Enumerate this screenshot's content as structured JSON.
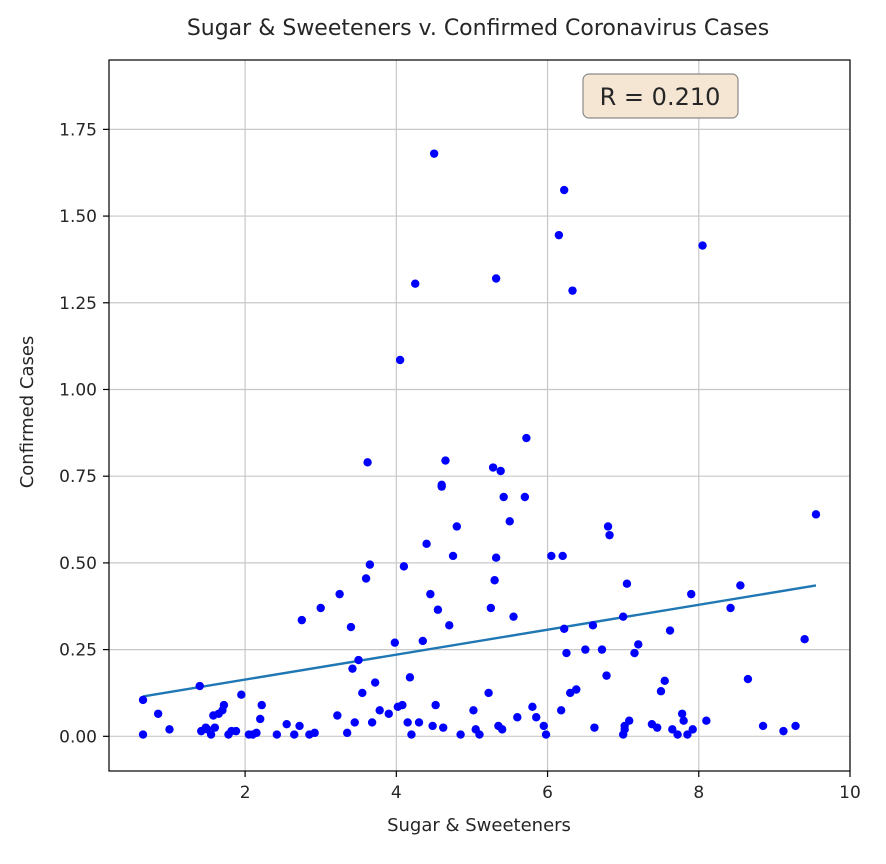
{
  "chart_data": {
    "type": "scatter",
    "title": "Sugar & Sweeteners v. Confirmed Coronavirus Cases",
    "xlabel": "Sugar & Sweeteners",
    "ylabel": "Confirmed Cases",
    "xlim": [
      0.2,
      10
    ],
    "ylim": [
      -0.1,
      1.95
    ],
    "xticks": [
      2,
      4,
      6,
      8,
      10
    ],
    "xtick_labels": [
      "2",
      "4",
      "6",
      "8",
      "10"
    ],
    "yticks": [
      0,
      0.25,
      0.5,
      0.75,
      1.0,
      1.25,
      1.5,
      1.75
    ],
    "ytick_labels": [
      "0.00",
      "0.25",
      "0.50",
      "0.75",
      "1.00",
      "1.25",
      "1.50",
      "1.75"
    ],
    "grid": true,
    "annotation": "R = 0.210",
    "colors": {
      "points": "#0000ff",
      "fit_line": "#1f77b4",
      "annotation_bg": "#f5e6d3",
      "grid": "#c8c8c8"
    },
    "fit_line": {
      "x": [
        0.65,
        9.55
      ],
      "y": [
        0.115,
        0.435
      ]
    },
    "points": {
      "x": [
        0.65,
        0.65,
        0.85,
        1.0,
        1.4,
        1.42,
        1.48,
        1.5,
        1.55,
        1.58,
        1.6,
        1.65,
        1.7,
        1.72,
        1.78,
        1.82,
        1.88,
        1.95,
        2.05,
        2.1,
        2.15,
        2.2,
        2.22,
        2.42,
        2.55,
        2.65,
        2.72,
        2.75,
        2.85,
        2.92,
        3.0,
        3.22,
        3.25,
        3.35,
        3.4,
        3.42,
        3.45,
        3.5,
        3.55,
        3.6,
        3.62,
        3.65,
        3.68,
        3.72,
        3.78,
        3.9,
        3.98,
        4.02,
        4.05,
        4.08,
        4.1,
        4.15,
        4.18,
        4.2,
        4.25,
        4.3,
        4.35,
        4.4,
        4.45,
        4.48,
        4.5,
        4.52,
        4.55,
        4.6,
        4.6,
        4.62,
        4.65,
        4.7,
        4.75,
        4.8,
        4.85,
        5.02,
        5.05,
        5.1,
        5.22,
        5.25,
        5.28,
        5.3,
        5.32,
        5.32,
        5.35,
        5.38,
        5.4,
        5.42,
        5.5,
        5.55,
        5.6,
        5.7,
        5.72,
        5.8,
        5.85,
        5.95,
        5.98,
        6.05,
        6.15,
        6.18,
        6.2,
        6.22,
        6.22,
        6.25,
        6.3,
        6.33,
        6.38,
        6.5,
        6.6,
        6.62,
        6.72,
        6.78,
        6.8,
        6.82,
        7.0,
        7.0,
        7.02,
        7.02,
        7.05,
        7.08,
        7.15,
        7.2,
        7.38,
        7.45,
        7.5,
        7.55,
        7.62,
        7.65,
        7.72,
        7.78,
        7.8,
        7.85,
        7.9,
        7.92,
        8.05,
        8.1,
        8.42,
        8.55,
        8.65,
        8.85,
        9.12,
        9.28,
        9.4,
        9.55
      ],
      "y": [
        0.105,
        0.005,
        0.065,
        0.02,
        0.145,
        0.015,
        0.025,
        0.02,
        0.005,
        0.06,
        0.025,
        0.065,
        0.075,
        0.09,
        0.005,
        0.015,
        0.015,
        0.12,
        0.005,
        0.005,
        0.01,
        0.05,
        0.09,
        0.005,
        0.035,
        0.005,
        0.03,
        0.335,
        0.005,
        0.01,
        0.37,
        0.06,
        0.41,
        0.01,
        0.315,
        0.195,
        0.04,
        0.22,
        0.125,
        0.455,
        0.79,
        0.495,
        0.04,
        0.155,
        0.075,
        0.065,
        0.27,
        0.085,
        1.085,
        0.09,
        0.49,
        0.04,
        0.17,
        0.005,
        1.305,
        0.04,
        0.275,
        0.555,
        0.41,
        0.03,
        1.68,
        0.09,
        0.365,
        0.725,
        0.72,
        0.025,
        0.795,
        0.32,
        0.52,
        0.605,
        0.005,
        0.075,
        0.02,
        0.005,
        0.125,
        0.37,
        0.775,
        0.45,
        0.515,
        1.32,
        0.03,
        0.765,
        0.02,
        0.69,
        0.62,
        0.345,
        0.055,
        0.69,
        0.86,
        0.085,
        0.055,
        0.03,
        0.005,
        0.52,
        1.445,
        0.075,
        0.52,
        1.575,
        0.31,
        0.24,
        0.125,
        1.285,
        0.135,
        0.25,
        0.32,
        0.025,
        0.25,
        0.175,
        0.605,
        0.58,
        0.345,
        0.005,
        0.03,
        0.02,
        0.44,
        0.045,
        0.24,
        0.265,
        0.035,
        0.025,
        0.13,
        0.16,
        0.305,
        0.02,
        0.005,
        0.065,
        0.045,
        0.005,
        0.41,
        0.02,
        1.415,
        0.045,
        0.37,
        0.435,
        0.165,
        0.03,
        0.015,
        0.03,
        0.28,
        0.64
      ]
    }
  }
}
